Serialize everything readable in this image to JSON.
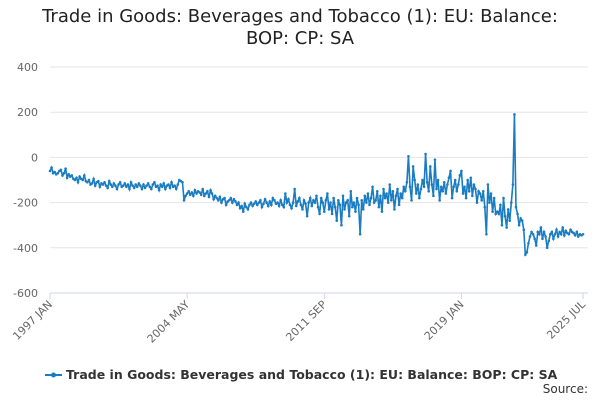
{
  "chart_data": {
    "type": "line",
    "title": "Trade in Goods: Beverages and Tobacco (1): EU: Balance: BOP: CP: SA",
    "source": "Source:",
    "categories": [
      "1997 JAN",
      null,
      null,
      null,
      null,
      null,
      null,
      null,
      null,
      null,
      null,
      null,
      null,
      null,
      null,
      null,
      null,
      null,
      null,
      null,
      null,
      null,
      null,
      null,
      null,
      null,
      null,
      null,
      null,
      null,
      null,
      null,
      null,
      null,
      null,
      null,
      null,
      null,
      null,
      null,
      null,
      null,
      null,
      null,
      null,
      null,
      null,
      null,
      null,
      null,
      null,
      null,
      null,
      null,
      null,
      null,
      null,
      null,
      null,
      null,
      null,
      null,
      null,
      null,
      null,
      null,
      null,
      null,
      null,
      null,
      null,
      null,
      null,
      null,
      null,
      null,
      null,
      null,
      null,
      null,
      null,
      null,
      null,
      null,
      null,
      null,
      null,
      null,
      "2004 MAY",
      null,
      null,
      null,
      null,
      null,
      null,
      null,
      null,
      null,
      null,
      null,
      null,
      null,
      null,
      null,
      null,
      null,
      null,
      null,
      null,
      null,
      null,
      null,
      null,
      null,
      null,
      null,
      null,
      null,
      null,
      null,
      null,
      null,
      null,
      null,
      null,
      null,
      null,
      null,
      null,
      null,
      null,
      null,
      null,
      null,
      null,
      null,
      null,
      null,
      null,
      null,
      null,
      null,
      null,
      null,
      null,
      null,
      null,
      null,
      null,
      null,
      null,
      null,
      null,
      null,
      null,
      null,
      null,
      null,
      null,
      null,
      null,
      null,
      null,
      null,
      null,
      null,
      null,
      null,
      null,
      null,
      null,
      null,
      null,
      null,
      null,
      null,
      "2011 SEP",
      null,
      null,
      null,
      null,
      null,
      null,
      null,
      null,
      null,
      null,
      null,
      null,
      null,
      null,
      null,
      null,
      null,
      null,
      null,
      null,
      null,
      null,
      null,
      null,
      null,
      null,
      null,
      null,
      null,
      null,
      null,
      null,
      null,
      null,
      null,
      null,
      null,
      null,
      null,
      null,
      null,
      null,
      null,
      null,
      null,
      null,
      null,
      null,
      null,
      null,
      null,
      null,
      null,
      null,
      null,
      null,
      null,
      null,
      null,
      null,
      null,
      null,
      null,
      null,
      null,
      null,
      null,
      null,
      null,
      null,
      null,
      null,
      null,
      null,
      null,
      null,
      null,
      null,
      null,
      null,
      null,
      null,
      null,
      null,
      null,
      null,
      null,
      "2019 JAN",
      null,
      null,
      null,
      null,
      null,
      null,
      null,
      null,
      null,
      null,
      null,
      null,
      null,
      null,
      null,
      null,
      null,
      null,
      null,
      null,
      null,
      null,
      null,
      null,
      null,
      null,
      null,
      null,
      null,
      null,
      null,
      null,
      null,
      null,
      null,
      null,
      null,
      null,
      null,
      null,
      null,
      null,
      null,
      null,
      null,
      null,
      null,
      null,
      null,
      null,
      null,
      null,
      null,
      null,
      null,
      null,
      null,
      null,
      null,
      null,
      null,
      null,
      null,
      null,
      null,
      null,
      null,
      null,
      null,
      null,
      null,
      null,
      null,
      null,
      null,
      null,
      null,
      "2025 JUL"
    ],
    "series": [
      {
        "name": "Trade in Goods: Beverages and Tobacco (1): EU: Balance: BOP: CP: SA",
        "color": "#1a7cc1",
        "values": [
          -60,
          -45,
          -70,
          -65,
          -75,
          -70,
          -60,
          -55,
          -80,
          -70,
          -50,
          -90,
          -75,
          -85,
          -80,
          -95,
          -100,
          -90,
          -110,
          -85,
          -95,
          -100,
          -80,
          -105,
          -110,
          -100,
          -120,
          -115,
          -95,
          -125,
          -110,
          -105,
          -130,
          -115,
          -120,
          -110,
          -125,
          -135,
          -105,
          -120,
          -130,
          -115,
          -125,
          -140,
          -120,
          -110,
          -130,
          -125,
          -115,
          -130,
          -120,
          -140,
          -110,
          -125,
          -135,
          -120,
          -130,
          -115,
          -125,
          -140,
          -120,
          -135,
          -125,
          -115,
          -130,
          -140,
          -120,
          -110,
          -130,
          -125,
          -145,
          -120,
          -130,
          -115,
          -140,
          -125,
          -120,
          -135,
          -110,
          -130,
          -125,
          -140,
          -120,
          -100,
          -105,
          -110,
          -190,
          -170,
          -160,
          -150,
          -165,
          -155,
          -170,
          -145,
          -160,
          -150,
          -155,
          -165,
          -140,
          -170,
          -160,
          -150,
          -175,
          -145,
          -160,
          -185,
          -170,
          -180,
          -190,
          -175,
          -200,
          -185,
          -180,
          -210,
          -195,
          -190,
          -180,
          -200,
          -185,
          -195,
          -210,
          -200,
          -225,
          -215,
          -240,
          -205,
          -220,
          -230,
          -210,
          -200,
          -215,
          -205,
          -195,
          -210,
          -200,
          -190,
          -220,
          -205,
          -185,
          -200,
          -215,
          -195,
          -210,
          -180,
          -190,
          -205,
          -200,
          -215,
          -190,
          -210,
          -220,
          -160,
          -200,
          -185,
          -210,
          -225,
          -200,
          -140,
          -215,
          -195,
          -180,
          -210,
          -230,
          -190,
          -205,
          -260,
          -200,
          -180,
          -215,
          -190,
          -200,
          -170,
          -220,
          -250,
          -180,
          -200,
          -240,
          -190,
          -160,
          -230,
          -200,
          -250,
          -180,
          -220,
          -280,
          -190,
          -210,
          -300,
          -170,
          -230,
          -200,
          -190,
          -260,
          -150,
          -220,
          -200,
          -240,
          -180,
          -210,
          -340,
          -190,
          -230,
          -170,
          -200,
          -160,
          -210,
          -180,
          -130,
          -200,
          -190,
          -150,
          -220,
          -170,
          -240,
          -140,
          -180,
          -160,
          -200,
          -120,
          -190,
          -150,
          -230,
          -170,
          -140,
          -210,
          -160,
          -180,
          -130,
          -150,
          -110,
          5,
          -130,
          -190,
          -40,
          -100,
          -160,
          -120,
          -180,
          -140,
          -100,
          -130,
          15,
          -110,
          -150,
          -40,
          -120,
          -170,
          -10,
          -140,
          -100,
          -190,
          -130,
          -150,
          -110,
          -160,
          -120,
          -90,
          -60,
          -180,
          -130,
          -100,
          -150,
          -120,
          -80,
          -60,
          -160,
          -130,
          -180,
          -100,
          -150,
          -90,
          -170,
          -120,
          -140,
          -200,
          -150,
          -160,
          -190,
          -150,
          -220,
          -340,
          -120,
          -200,
          -160,
          -240,
          -180,
          -250,
          -240,
          -250,
          -210,
          -300,
          -180,
          -260,
          -310,
          -230,
          -280,
          -200,
          -120,
          190,
          -220,
          -250,
          -300,
          -270,
          -280,
          -320,
          -430,
          -420,
          -380,
          -350,
          -330,
          -340,
          -360,
          -390,
          -330,
          -340,
          -310,
          -360,
          -330,
          -350,
          -400,
          -370,
          -340,
          -330,
          -360,
          -340,
          -320,
          -350,
          -330,
          -340,
          -310,
          -345,
          -325,
          -335,
          -340,
          -320,
          -330,
          -335,
          -345,
          -330,
          -350,
          -340,
          -345,
          -340
        ]
      }
    ],
    "ylim": [
      -600,
      400
    ],
    "yticks": [
      -600,
      -400,
      -200,
      0,
      200,
      400
    ],
    "grid": true
  }
}
